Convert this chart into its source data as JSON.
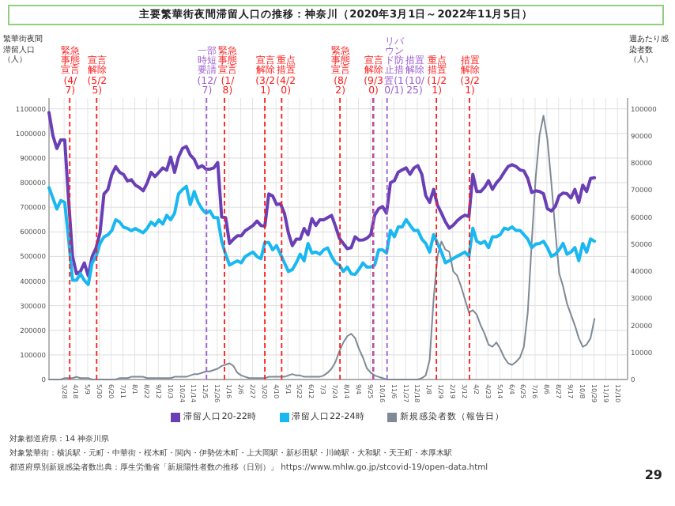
{
  "chart_data": {
    "type": "line",
    "title": "主要繁華街夜間滞留人口の推移：神奈川（2020年3月1日～2022年11月5日）",
    "ylabel": "繁華街夜間滞留人口（人）",
    "y2label": "週あたり感染者数（人）",
    "x": [
      "2020-03-01",
      "2020-03-08",
      "2020-03-15",
      "2020-03-22",
      "2020-03-29",
      "2020-04-05",
      "2020-04-12",
      "2020-04-19",
      "2020-04-26",
      "2020-05-03",
      "2020-05-10",
      "2020-05-17",
      "2020-05-24",
      "2020-05-31",
      "2020-06-07",
      "2020-06-14",
      "2020-06-21",
      "2020-06-28",
      "2020-07-05",
      "2020-07-12",
      "2020-07-19",
      "2020-07-26",
      "2020-08-02",
      "2020-08-09",
      "2020-08-16",
      "2020-08-23",
      "2020-08-30",
      "2020-09-06",
      "2020-09-13",
      "2020-09-20",
      "2020-09-27",
      "2020-10-04",
      "2020-10-11",
      "2020-10-18",
      "2020-10-25",
      "2020-11-01",
      "2020-11-08",
      "2020-11-15",
      "2020-11-22",
      "2020-11-29",
      "2020-12-06",
      "2020-12-13",
      "2020-12-20",
      "2020-12-27",
      "2021-01-03",
      "2021-01-10",
      "2021-01-17",
      "2021-01-24",
      "2021-01-31",
      "2021-02-07",
      "2021-02-14",
      "2021-02-21",
      "2021-02-28",
      "2021-03-07",
      "2021-03-14",
      "2021-03-21",
      "2021-03-28",
      "2021-04-04",
      "2021-04-11",
      "2021-04-18",
      "2021-04-25",
      "2021-05-02",
      "2021-05-09",
      "2021-05-16",
      "2021-05-23",
      "2021-05-30",
      "2021-06-06",
      "2021-06-13",
      "2021-06-20",
      "2021-06-27",
      "2021-07-04",
      "2021-07-11",
      "2021-07-18",
      "2021-07-25",
      "2021-08-01",
      "2021-08-08",
      "2021-08-15",
      "2021-08-22",
      "2021-08-29",
      "2021-09-05",
      "2021-09-12",
      "2021-09-19",
      "2021-09-26",
      "2021-10-03",
      "2021-10-10",
      "2021-10-17",
      "2021-10-24",
      "2021-10-31",
      "2021-11-07",
      "2021-11-14",
      "2021-11-21",
      "2021-11-28",
      "2021-12-05",
      "2021-12-12",
      "2021-12-19",
      "2021-12-26",
      "2022-01-02",
      "2022-01-09",
      "2022-01-16",
      "2022-01-23",
      "2022-01-30",
      "2022-02-06",
      "2022-02-13",
      "2022-02-20",
      "2022-02-27",
      "2022-03-06",
      "2022-03-13",
      "2022-03-20",
      "2022-03-27",
      "2022-04-03",
      "2022-04-10",
      "2022-04-17",
      "2022-04-24",
      "2022-05-01",
      "2022-05-08",
      "2022-05-15",
      "2022-05-22",
      "2022-05-29",
      "2022-06-05",
      "2022-06-12",
      "2022-06-19",
      "2022-06-26",
      "2022-07-03",
      "2022-07-10",
      "2022-07-17",
      "2022-07-24",
      "2022-07-31",
      "2022-08-07",
      "2022-08-14",
      "2022-08-21",
      "2022-08-28",
      "2022-09-04",
      "2022-09-11",
      "2022-09-18",
      "2022-09-25",
      "2022-10-02",
      "2022-10-09",
      "2022-10-16",
      "2022-10-23",
      "2022-10-30"
    ],
    "series": [
      {
        "name": "滞留人口20-22時",
        "color": "#6a3fb5",
        "values": [
          1085000,
          991000,
          939000,
          974000,
          974000,
          728000,
          500000,
          430000,
          439000,
          474000,
          421000,
          500000,
          535000,
          596000,
          754000,
          772000,
          833000,
          865000,
          842000,
          833000,
          807000,
          812000,
          790000,
          781000,
          767000,
          798000,
          842000,
          825000,
          842000,
          860000,
          851000,
          904000,
          842000,
          904000,
          939000,
          947000,
          912000,
          895000,
          860000,
          869000,
          855000,
          855000,
          860000,
          882000,
          660000,
          658000,
          553000,
          570000,
          584000,
          584000,
          605000,
          615000,
          626000,
          644000,
          626000,
          623000,
          754000,
          746000,
          711000,
          714000,
          675000,
          596000,
          544000,
          570000,
          570000,
          614000,
          588000,
          654000,
          626000,
          649000,
          649000,
          658000,
          667000,
          623000,
          574000,
          553000,
          532000,
          536000,
          580000,
          566000,
          567000,
          574000,
          589000,
          668000,
          694000,
          703000,
          676000,
          799000,
          808000,
          843000,
          852000,
          860000,
          834000,
          860000,
          869000,
          834000,
          747000,
          720000,
          773000,
          708000,
          676000,
          641000,
          615000,
          627000,
          645000,
          659000,
          668000,
          662000,
          834000,
          764000,
          764000,
          781000,
          808000,
          773000,
          799000,
          817000,
          843000,
          866000,
          873000,
          866000,
          852000,
          848000,
          817000,
          760000,
          767000,
          764000,
          755000,
          694000,
          685000,
          703000,
          747000,
          758000,
          755000,
          738000,
          773000,
          720000,
          790000,
          764000,
          817000,
          820000
        ]
      },
      {
        "name": "滞留人口22-24時",
        "color": "#1ab8f0",
        "values": [
          780000,
          737000,
          693000,
          728000,
          720000,
          570000,
          403000,
          403000,
          430000,
          403000,
          386000,
          474000,
          500000,
          553000,
          579000,
          588000,
          605000,
          649000,
          640000,
          619000,
          614000,
          605000,
          614000,
          605000,
          596000,
          614000,
          640000,
          626000,
          649000,
          632000,
          667000,
          649000,
          676000,
          755000,
          772000,
          785000,
          711000,
          764000,
          720000,
          693000,
          676000,
          685000,
          658000,
          658000,
          562000,
          509000,
          465000,
          474000,
          482000,
          474000,
          500000,
          509000,
          518000,
          500000,
          491000,
          557000,
          557000,
          527000,
          544000,
          509000,
          474000,
          439000,
          447000,
          474000,
          509000,
          482000,
          553000,
          514000,
          518000,
          509000,
          527000,
          535000,
          500000,
          474000,
          465000,
          439000,
          457000,
          430000,
          427000,
          448000,
          474000,
          457000,
          457000,
          465000,
          527000,
          527000,
          514000,
          606000,
          580000,
          620000,
          620000,
          650000,
          627000,
          606000,
          606000,
          571000,
          553000,
          518000,
          589000,
          553000,
          518000,
          474000,
          483000,
          492000,
          501000,
          509000,
          518000,
          501000,
          615000,
          562000,
          553000,
          562000,
          536000,
          580000,
          580000,
          589000,
          615000,
          610000,
          620000,
          606000,
          606000,
          589000,
          571000,
          536000,
          550000,
          553000,
          562000,
          536000,
          501000,
          509000,
          527000,
          553000,
          509000,
          518000,
          536000,
          483000,
          553000,
          518000,
          571000,
          562000
        ]
      },
      {
        "name": "新規感染者数（報告日）",
        "color": "#7f8a96",
        "axis": "y2",
        "values": [
          0,
          0,
          0,
          0,
          500,
          500,
          500,
          1000,
          500,
          500,
          500,
          0,
          0,
          0,
          0,
          0,
          0,
          0,
          500,
          500,
          500,
          1000,
          1000,
          1000,
          1000,
          500,
          500,
          500,
          500,
          500,
          500,
          500,
          1000,
          1000,
          1000,
          1000,
          1500,
          2000,
          2000,
          2500,
          3000,
          3000,
          3500,
          4000,
          5000,
          5500,
          6000,
          5000,
          2500,
          1500,
          1000,
          500,
          500,
          500,
          500,
          500,
          1000,
          1000,
          1000,
          1000,
          1000,
          1500,
          2000,
          1500,
          1500,
          1000,
          1000,
          1000,
          1000,
          1000,
          1500,
          2500,
          4000,
          6500,
          10500,
          13700,
          16000,
          16900,
          15300,
          11300,
          8100,
          4100,
          2500,
          1500,
          1000,
          500,
          0,
          0,
          0,
          0,
          0,
          0,
          0,
          0,
          0,
          500,
          1500,
          7300,
          29600,
          45600,
          51000,
          48000,
          47200,
          40000,
          38400,
          34400,
          29600,
          24800,
          25600,
          24000,
          20000,
          16900,
          12900,
          12100,
          13700,
          11300,
          8100,
          6000,
          5400,
          6500,
          8100,
          12100,
          24800,
          50400,
          74400,
          90300,
          97500,
          88700,
          72800,
          55200,
          39200,
          34400,
          28000,
          24000,
          20000,
          15300,
          12100,
          12900,
          15300,
          22400
        ]
      }
    ],
    "xlim": [
      "2020-03-01",
      "2022-12-28"
    ],
    "xticks": [
      {
        "value": "2020-03-28",
        "label": "3/28"
      },
      {
        "value": "2020-04-18",
        "label": "4/18"
      },
      {
        "value": "2020-05-09",
        "label": "5/9"
      },
      {
        "value": "2020-05-30",
        "label": "5/30"
      },
      {
        "value": "2020-06-20",
        "label": "6/20"
      },
      {
        "value": "2020-07-11",
        "label": "7/11"
      },
      {
        "value": "2020-08-01",
        "label": "8/1"
      },
      {
        "value": "2020-08-22",
        "label": "8/22"
      },
      {
        "value": "2020-09-12",
        "label": "9/12"
      },
      {
        "value": "2020-10-03",
        "label": "10/3"
      },
      {
        "value": "2020-10-24",
        "label": "10/24"
      },
      {
        "value": "2020-11-14",
        "label": "11/14"
      },
      {
        "value": "2020-12-05",
        "label": "12/5"
      },
      {
        "value": "2020-12-26",
        "label": "12/26"
      },
      {
        "value": "2021-01-16",
        "label": "1/16"
      },
      {
        "value": "2021-02-06",
        "label": "2/6"
      },
      {
        "value": "2021-02-27",
        "label": "2/27"
      },
      {
        "value": "2021-03-20",
        "label": "3/20"
      },
      {
        "value": "2021-04-10",
        "label": "4/10"
      },
      {
        "value": "2021-05-01",
        "label": "5/1"
      },
      {
        "value": "2021-05-22",
        "label": "5/22"
      },
      {
        "value": "2021-06-12",
        "label": "6/12"
      },
      {
        "value": "2021-07-03",
        "label": "7/3"
      },
      {
        "value": "2021-07-24",
        "label": "7/24"
      },
      {
        "value": "2021-08-14",
        "label": "8/14"
      },
      {
        "value": "2021-09-04",
        "label": "9/4"
      },
      {
        "value": "2021-09-25",
        "label": "9/25"
      },
      {
        "value": "2021-10-16",
        "label": "10/16"
      },
      {
        "value": "2021-11-06",
        "label": "11/6"
      },
      {
        "value": "2021-11-27",
        "label": "11/27"
      },
      {
        "value": "2021-12-18",
        "label": "12/18"
      },
      {
        "value": "2022-01-08",
        "label": "1/8"
      },
      {
        "value": "2022-01-29",
        "label": "1/29"
      },
      {
        "value": "2022-02-19",
        "label": "2/19"
      },
      {
        "value": "2022-03-12",
        "label": "3/12"
      },
      {
        "value": "2022-04-02",
        "label": "4/2"
      },
      {
        "value": "2022-04-23",
        "label": "4/23"
      },
      {
        "value": "2022-05-14",
        "label": "5/14"
      },
      {
        "value": "2022-06-04",
        "label": "6/4"
      },
      {
        "value": "2022-06-25",
        "label": "6/25"
      },
      {
        "value": "2022-07-16",
        "label": "7/16"
      },
      {
        "value": "2022-08-06",
        "label": "8/6"
      },
      {
        "value": "2022-08-27",
        "label": "8/27"
      },
      {
        "value": "2022-09-17",
        "label": "9/17"
      },
      {
        "value": "2022-10-08",
        "label": "10/8"
      },
      {
        "value": "2022-10-29",
        "label": "10/29"
      },
      {
        "value": "2022-11-19",
        "label": "11/19"
      },
      {
        "value": "2022-12-10",
        "label": "12/10"
      }
    ],
    "ylim": [
      0,
      1144000
    ],
    "yticks": [
      0,
      100000,
      200000,
      300000,
      400000,
      500000,
      600000,
      700000,
      800000,
      900000,
      1000000,
      1100000
    ],
    "y2lim": [
      0,
      104000
    ],
    "y2ticks": [
      0,
      10000,
      20000,
      30000,
      40000,
      50000,
      60000,
      70000,
      80000,
      90000,
      100000
    ],
    "grid": true,
    "legend": "bottom",
    "ref_lines": [
      {
        "axis": "x",
        "value": "2020-04-07",
        "label": "緊急事態宣言(4/7)",
        "color": "#ff1a1a",
        "line_style": "dashed"
      },
      {
        "axis": "x",
        "value": "2020-05-25",
        "label": "宣言解除(5/25)",
        "color": "#ff1a1a",
        "line_style": "dashed"
      },
      {
        "axis": "x",
        "value": "2020-12-07",
        "label": "一部時短要請(12/7)",
        "color": "#9b5fd1",
        "line_style": "dashed"
      },
      {
        "axis": "x",
        "value": "2021-01-08",
        "label": "緊急事態宣言(1/8)",
        "color": "#ff1a1a",
        "line_style": "dashed"
      },
      {
        "axis": "x",
        "value": "2021-03-21",
        "label": "宣言解除(3/21)",
        "color": "#ff1a1a",
        "line_style": "dashed"
      },
      {
        "axis": "x",
        "value": "2021-04-20",
        "label": "重点措置(4/20)",
        "color": "#ff1a1a",
        "line_style": "dashed"
      },
      {
        "axis": "x",
        "value": "2021-08-02",
        "label": "緊急事態宣言(8/2)",
        "color": "#ff1a1a",
        "line_style": "dashed"
      },
      {
        "axis": "x",
        "value": "2021-09-30",
        "label": "宣言解除(9/30)",
        "color": "#ff1a1a",
        "line_style": "dashed"
      },
      {
        "axis": "x",
        "value": "2021-10-01",
        "label": "リバウンド防止措置(10/1)",
        "color": "#9b5fd1",
        "line_style": "dashed"
      },
      {
        "axis": "x",
        "value": "2021-10-25",
        "label": "措置解除(10/25)",
        "color": "#9b5fd1",
        "line_style": "dashed"
      },
      {
        "axis": "x",
        "value": "2022-01-21",
        "label": "重点措置(1/21)",
        "color": "#ff1a1a",
        "line_style": "dashed"
      },
      {
        "axis": "x",
        "value": "2022-03-21",
        "label": "措置解除(3/21)",
        "color": "#ff1a1a",
        "line_style": "dashed"
      }
    ],
    "annotations": [
      "対象都道府県：14 神奈川県",
      "対象繁華街：横浜駅・元町・中華街・桜木町・関内・伊勢佐木町・上大岡駅・新杉田駅・川崎駅・大和駅・天王町・本厚木駅",
      "都道府県別新規感染者数出典：厚生労働省「新規陽性者数の推移（日別）」 https://www.mhlw.go.jp/stcovid-19/open-data.html",
      "29"
    ]
  }
}
